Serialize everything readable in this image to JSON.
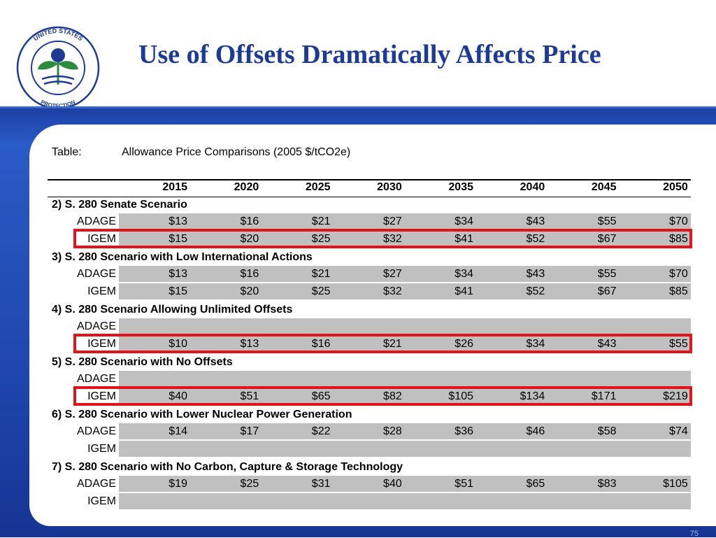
{
  "slide": {
    "title": "Use of Offsets Dramatically Affects Price",
    "page_number": "75"
  },
  "logo": {
    "top_text": "UNITED STATES",
    "left_text": "ENVIRONMENTAL",
    "bottom_text": "PROTECTION",
    "right_text": "AGENCY",
    "colors": {
      "green": "#2e8b3e",
      "blue": "#1c3a96",
      "outline": "#1c3a96"
    }
  },
  "table": {
    "caption_label": "Table:",
    "caption": "Allowance Price Comparisons (2005 $/tCO2e)",
    "years": [
      "2015",
      "2020",
      "2025",
      "2030",
      "2035",
      "2040",
      "2045",
      "2050"
    ],
    "sections": [
      {
        "title": "2)  S. 280 Senate Scenario",
        "rows": [
          {
            "label": "ADAGE",
            "values": [
              "$13",
              "$16",
              "$21",
              "$27",
              "$34",
              "$43",
              "$55",
              "$70"
            ],
            "highlighted": false
          },
          {
            "label": "IGEM",
            "values": [
              "$15",
              "$20",
              "$25",
              "$32",
              "$41",
              "$52",
              "$67",
              "$85"
            ],
            "highlighted": true
          }
        ]
      },
      {
        "title": "3)  S. 280 Scenario with Low International Actions",
        "rows": [
          {
            "label": "ADAGE",
            "values": [
              "$13",
              "$16",
              "$21",
              "$27",
              "$34",
              "$43",
              "$55",
              "$70"
            ],
            "highlighted": false
          },
          {
            "label": "IGEM",
            "values": [
              "$15",
              "$20",
              "$25",
              "$32",
              "$41",
              "$52",
              "$67",
              "$85"
            ],
            "highlighted": false
          }
        ]
      },
      {
        "title": "4)  S. 280 Scenario Allowing Unlimited Offsets",
        "rows": [
          {
            "label": "ADAGE",
            "values": [
              "",
              "",
              "",
              "",
              "",
              "",
              "",
              ""
            ],
            "highlighted": false
          },
          {
            "label": "IGEM",
            "values": [
              "$10",
              "$13",
              "$16",
              "$21",
              "$26",
              "$34",
              "$43",
              "$55"
            ],
            "highlighted": true
          }
        ]
      },
      {
        "title": "5)  S. 280 Scenario with No Offsets",
        "rows": [
          {
            "label": "ADAGE",
            "values": [
              "",
              "",
              "",
              "",
              "",
              "",
              "",
              ""
            ],
            "highlighted": false
          },
          {
            "label": "IGEM",
            "values": [
              "$40",
              "$51",
              "$65",
              "$82",
              "$105",
              "$134",
              "$171",
              "$219"
            ],
            "highlighted": true
          }
        ]
      },
      {
        "title": "6)  S. 280 Scenario with Lower Nuclear Power Generation",
        "rows": [
          {
            "label": "ADAGE",
            "values": [
              "$14",
              "$17",
              "$22",
              "$28",
              "$36",
              "$46",
              "$58",
              "$74"
            ],
            "highlighted": false
          },
          {
            "label": "IGEM",
            "values": [
              "",
              "",
              "",
              "",
              "",
              "",
              "",
              ""
            ],
            "highlighted": false
          }
        ]
      },
      {
        "title": "7)  S. 280 Scenario with No Carbon, Capture & Storage Technology",
        "rows": [
          {
            "label": "ADAGE",
            "values": [
              "$19",
              "$25",
              "$31",
              "$40",
              "$51",
              "$65",
              "$83",
              "$105"
            ],
            "highlighted": false
          },
          {
            "label": "IGEM",
            "values": [
              "",
              "",
              "",
              "",
              "",
              "",
              "",
              ""
            ],
            "highlighted": false
          }
        ]
      }
    ]
  },
  "colors": {
    "title": "#1c3a96",
    "row_shading": "#c0c0c0",
    "highlight_border": "#e1141c",
    "background_band": "#1f47ad"
  }
}
